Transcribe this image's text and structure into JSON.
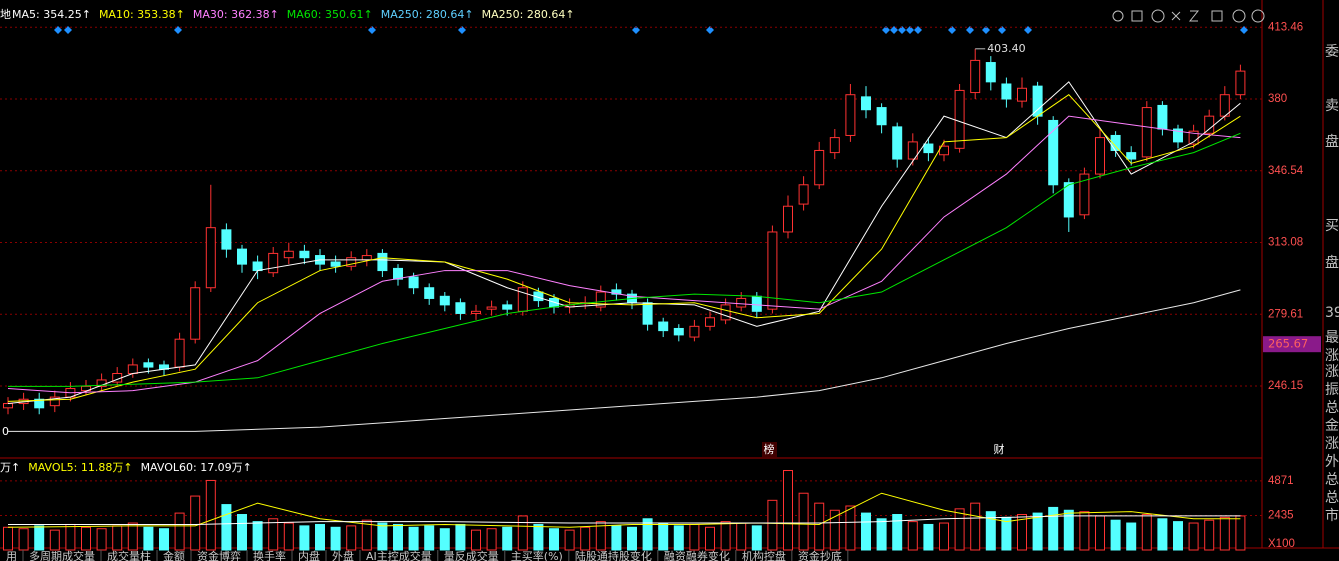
{
  "chart_data": {
    "type": "candlestick",
    "header_left": "地",
    "indicators": [
      {
        "label": "MA5: 354.25↑",
        "color": "#ffffff"
      },
      {
        "label": "MA10: 353.38↑",
        "color": "#ffff00"
      },
      {
        "label": "MA30: 362.38↑",
        "color": "#ff80ff"
      },
      {
        "label": "MA60: 350.61↑",
        "color": "#00e600"
      },
      {
        "label": "MA250: 280.64↑",
        "color": "#5fd0ff"
      },
      {
        "label": "MA250: 280.64↑",
        "color": "#ffffc0"
      }
    ],
    "volume_indicators": [
      {
        "label": "万↑",
        "color": "#ffffff"
      },
      {
        "label": "MAVOL5: 11.88万↑",
        "color": "#ffff00"
      },
      {
        "label": "MAVOL60: 17.09万↑",
        "color": "#ffffff"
      }
    ],
    "ylim": [
      214,
      421.5
    ],
    "yticks": [
      413.46,
      380.0,
      346.54,
      313.08,
      279.61,
      246.15
    ],
    "grid": true,
    "current_price": 265.67,
    "annotation": {
      "value": 403.4,
      "label": "403.40"
    },
    "left_label": "0",
    "events": [
      "榜",
      "财"
    ],
    "up_color": "#ff3232",
    "down_color": "#54ffff",
    "open": [
      236,
      238,
      240,
      237,
      241,
      244,
      246,
      248,
      252,
      257,
      256,
      255,
      268,
      292,
      319,
      310,
      304,
      299,
      306,
      309,
      307,
      304,
      302,
      305,
      308,
      301,
      297,
      292,
      288,
      285,
      280,
      282,
      284,
      281,
      290,
      287,
      283,
      285,
      283,
      291,
      289,
      285,
      276,
      273,
      269,
      274,
      277,
      283,
      288,
      282,
      318,
      331,
      340,
      355,
      363,
      381,
      376,
      367,
      352,
      359,
      354,
      357,
      383,
      397,
      387,
      379,
      386,
      370,
      341,
      326,
      345,
      363,
      355,
      353,
      377,
      366,
      359,
      364,
      372,
      382
    ],
    "high": [
      241,
      243,
      243,
      244,
      248,
      249,
      252,
      255,
      259,
      259,
      258,
      271,
      295,
      340,
      322,
      312,
      307,
      311,
      313,
      312,
      310,
      307,
      309,
      310,
      310,
      303,
      299,
      294,
      290,
      287,
      284,
      286,
      286,
      295,
      292,
      289,
      287,
      288,
      293,
      294,
      291,
      287,
      278,
      275,
      277,
      281,
      287,
      290,
      290,
      321,
      335,
      344,
      360,
      366,
      387,
      386,
      378,
      369,
      364,
      362,
      361,
      387,
      403.4,
      400,
      390,
      390,
      388,
      372,
      343,
      348,
      366,
      365,
      358,
      379,
      379,
      368,
      368,
      375,
      386,
      396
    ],
    "low": [
      233,
      235,
      233,
      234,
      239,
      242,
      244,
      246,
      250,
      252,
      251,
      253,
      266,
      290,
      306,
      299,
      296,
      297,
      303,
      303,
      300,
      299,
      300,
      302,
      297,
      293,
      289,
      284,
      281,
      277,
      277,
      279,
      279,
      279,
      283,
      280,
      280,
      282,
      281,
      286,
      282,
      272,
      269,
      267,
      267,
      272,
      275,
      281,
      278,
      280,
      315,
      328,
      338,
      352,
      360,
      371,
      364,
      348,
      349,
      351,
      351,
      355,
      380,
      384,
      376,
      376,
      368,
      336,
      318,
      324,
      343,
      353,
      349,
      351,
      363,
      357,
      357,
      362,
      370,
      380
    ],
    "close": [
      238,
      240,
      236,
      241,
      245,
      246,
      249,
      252,
      256,
      255,
      254,
      268,
      292,
      320,
      310,
      303,
      300,
      308,
      309,
      306,
      303,
      302,
      306,
      307,
      300,
      296,
      292,
      287,
      284,
      280,
      281,
      283,
      282,
      292,
      286,
      283,
      284,
      285,
      290,
      289,
      285,
      275,
      272,
      270,
      274,
      278,
      284,
      287,
      281,
      318,
      330,
      340,
      356,
      362,
      382,
      375,
      368,
      352,
      360,
      355,
      358,
      384,
      398,
      388,
      380,
      385,
      372,
      340,
      325,
      345,
      362,
      356,
      352,
      376,
      366,
      360,
      365,
      372,
      382,
      393
    ],
    "ma_x": [
      0,
      4,
      8,
      12,
      16,
      20,
      24,
      28,
      32,
      36,
      40,
      44,
      48,
      52,
      56,
      60,
      64,
      68,
      72,
      76,
      79
    ],
    "series": [
      {
        "name": "MA5",
        "color": "#ffffff",
        "values": [
          238,
          241,
          252,
          256,
          300,
          305,
          305,
          304,
          292,
          283,
          285,
          284,
          274,
          281,
          330,
          372,
          362,
          388,
          345,
          360,
          378
        ]
      },
      {
        "name": "MA10",
        "color": "#ffff00",
        "values": [
          239,
          240,
          248,
          254,
          285,
          300,
          306,
          304,
          296,
          285,
          284,
          285,
          278,
          280,
          310,
          360,
          362,
          382,
          350,
          358,
          372
        ]
      },
      {
        "name": "MA30",
        "color": "#ff80ff",
        "values": [
          245,
          243,
          244,
          248,
          258,
          280,
          295,
          300,
          300,
          293,
          288,
          286,
          284,
          282,
          295,
          325,
          345,
          372,
          368,
          364,
          362
        ]
      },
      {
        "name": "MA60",
        "color": "#00e600",
        "values": [
          246,
          246,
          247,
          248,
          250,
          258,
          266,
          273,
          280,
          284,
          287,
          289,
          288,
          285,
          290,
          305,
          320,
          340,
          348,
          355,
          364
        ]
      },
      {
        "name": "MA250",
        "color": "#e8e8e8",
        "values": [
          225,
          225,
          225,
          225,
          226,
          227,
          229,
          231,
          233,
          235,
          237,
          239,
          241,
          244,
          250,
          258,
          266,
          273,
          279,
          285,
          291
        ]
      }
    ],
    "volume": [
      1600,
      1500,
      1700,
      1400,
      1800,
      1600,
      1500,
      1700,
      1900,
      1600,
      1500,
      2600,
      3800,
      4900,
      3200,
      2500,
      2000,
      2200,
      1900,
      1700,
      1800,
      1600,
      1700,
      2100,
      1900,
      1800,
      1600,
      1700,
      1500,
      1800,
      1400,
      1500,
      1600,
      2400,
      1800,
      1500,
      1400,
      1600,
      2000,
      1700,
      1600,
      2200,
      1900,
      1700,
      1800,
      1600,
      2000,
      1900,
      1700,
      3500,
      5600,
      4000,
      3300,
      2800,
      3100,
      2600,
      2200,
      2500,
      2000,
      1800,
      1900,
      2900,
      3300,
      2700,
      2300,
      2500,
      2600,
      3000,
      2800,
      2700,
      2400,
      2100,
      1900,
      2500,
      2200,
      2000,
      1900,
      2100,
      2300,
      2400
    ],
    "vol_ylim": [
      0,
      6200
    ],
    "vol_yticks": [
      4871,
      2435,
      {
        "value": 0,
        "label": "X100"
      }
    ],
    "vol_series": [
      {
        "name": "MAVOL5",
        "color": "#ffff00",
        "values": [
          1600,
          1650,
          1700,
          1700,
          3300,
          2200,
          1700,
          1800,
          1700,
          1600,
          1800,
          1800,
          1900,
          1800,
          4000,
          2800,
          2000,
          2600,
          2700,
          2200,
          2200
        ]
      },
      {
        "name": "MAVOL60",
        "color": "#ffffff",
        "values": [
          1800,
          1800,
          1800,
          1800,
          1900,
          2000,
          2000,
          2000,
          1950,
          1900,
          1900,
          1900,
          1900,
          1900,
          2000,
          2200,
          2300,
          2400,
          2400,
          2400,
          2400
        ]
      }
    ],
    "side_panel": [
      "委",
      "卖",
      "盘",
      "买",
      "盘",
      "39",
      "最",
      "涨",
      "涨",
      "振",
      "总",
      "金",
      "涨",
      "外",
      "总",
      "总",
      "市"
    ],
    "tabs": [
      "用",
      "多周期成交量",
      "成交量柱",
      "金额",
      "资金博弈",
      "换手率",
      "内盘",
      "外盘",
      "AI主控成交量",
      "量反成交量",
      "主买率(%)",
      "陆股通持股变化",
      "融资融券变化",
      "机构控盘",
      "资金抄底"
    ]
  }
}
